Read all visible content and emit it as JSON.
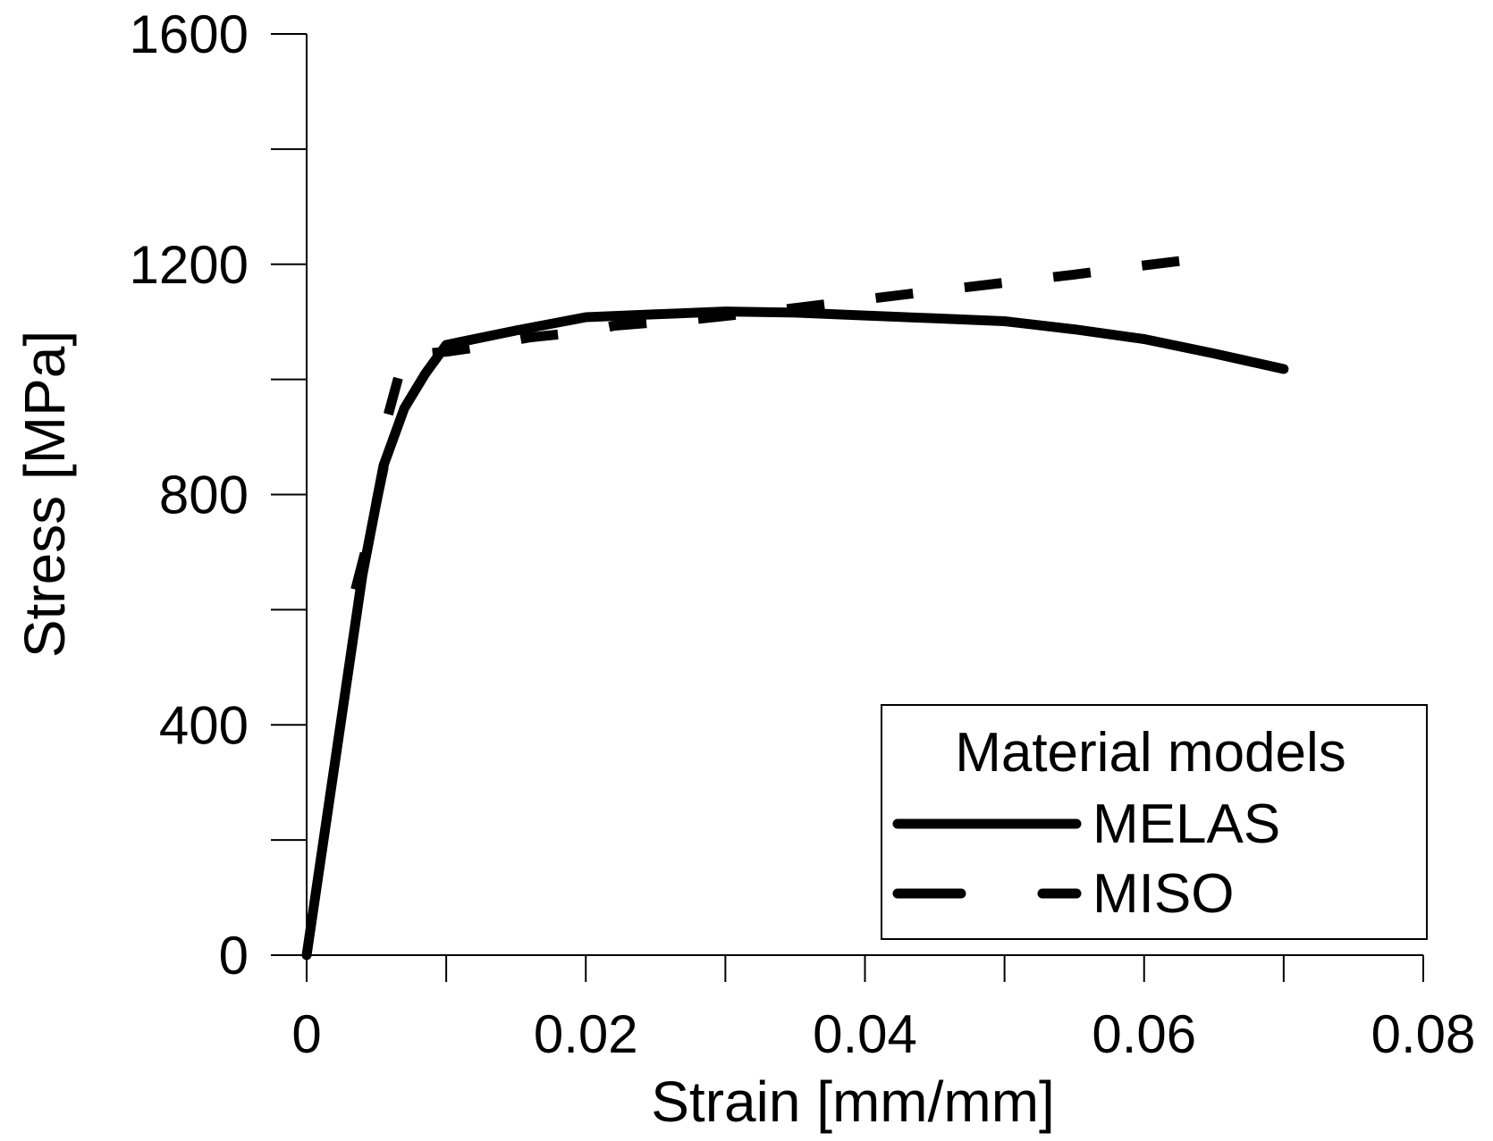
{
  "chart_data": {
    "type": "line",
    "title": "",
    "xlabel": "Strain [mm/mm]",
    "ylabel": "Stress [MPa]",
    "xlim": [
      0,
      0.08
    ],
    "ylim": [
      0,
      1600
    ],
    "xticks": [
      0,
      0.02,
      0.04,
      0.06,
      0.08
    ],
    "xtick_labels": [
      "0",
      "0.02",
      "0.04",
      "0.06",
      "0.08"
    ],
    "x_minor_ticks": [
      0.01,
      0.03,
      0.05,
      0.07
    ],
    "yticks": [
      0,
      400,
      800,
      1200,
      1600
    ],
    "ytick_labels": [
      "0",
      "400",
      "800",
      "1200",
      "1600"
    ],
    "y_minor_ticks": [
      200,
      600,
      1000,
      1400
    ],
    "grid": false,
    "legend": {
      "title": "Material models",
      "position": "bottom-right",
      "entries": [
        "MELAS",
        "MISO"
      ]
    },
    "series": [
      {
        "name": "MELAS",
        "style": "solid",
        "color": "#000000",
        "x": [
          0,
          0.002,
          0.004,
          0.0055,
          0.007,
          0.0085,
          0.01,
          0.015,
          0.02,
          0.025,
          0.03,
          0.035,
          0.04,
          0.045,
          0.05,
          0.055,
          0.06,
          0.065,
          0.07
        ],
        "y": [
          0,
          330,
          660,
          850,
          950,
          1010,
          1060,
          1085,
          1108,
          1113,
          1118,
          1116,
          1111,
          1106,
          1101,
          1087,
          1070,
          1045,
          1018
        ]
      },
      {
        "name": "MISO",
        "style": "dashed",
        "color": "#000000",
        "x": [
          0.0035,
          0.0045,
          0.0055,
          0.0058,
          0.007,
          0.01,
          0.012,
          0.016,
          0.02,
          0.022,
          0.028,
          0.03,
          0.033,
          0.038,
          0.043,
          0.05,
          0.055,
          0.06,
          0.065
        ],
        "y": [
          635,
          730,
          845,
          935,
          1042,
          1048,
          1055,
          1073,
          1083,
          1093,
          1105,
          1110,
          1118,
          1133,
          1148,
          1168,
          1182,
          1198,
          1213
        ]
      }
    ]
  }
}
